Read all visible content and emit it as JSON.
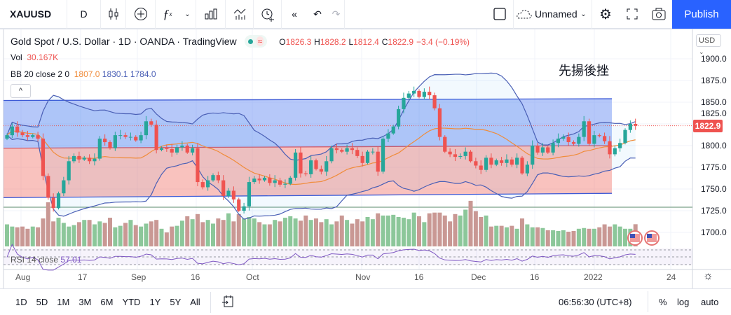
{
  "toolbar": {
    "symbol": "XAUUSD",
    "interval": "D",
    "layout_name": "Unnamed",
    "publish_label": "Publish",
    "icons": [
      "candles-icon",
      "add-indicator-icon",
      "fx-icon",
      "chevron-down-icon",
      "templates-icon",
      "compare-icon",
      "alert-icon",
      "replay-icon",
      "undo-icon",
      "redo-icon",
      "layout-icon",
      "cloud-icon",
      "chevron-down-icon",
      "gear-icon",
      "fullscreen-icon",
      "camera-icon"
    ]
  },
  "legend": {
    "title": "Gold Spot / U.S. Dollar · 1D · OANDA · TradingView",
    "market_status_color": "#26a69a",
    "badge": "≈",
    "o_label": "O",
    "o": "1826.3",
    "h_label": "H",
    "h": "1828.2",
    "l_label": "L",
    "l": "1812.4",
    "c_label": "C",
    "c": "1822.9",
    "change": "−3.4 (−0.19%)",
    "vol_label": "Vol",
    "vol_value": "30.167K",
    "bb_label": "BB 20 close 2 0",
    "bb_basis": "1807.0",
    "bb_upper": "1830.1",
    "bb_lower": "1784.0",
    "collapse": "^"
  },
  "annotation": "先揚後挫",
  "price_axis": {
    "currency": "USD",
    "ticks": [
      "1900.0",
      "1875.0",
      "1850.0",
      "1825.0",
      "1800.0",
      "1775.0",
      "1750.0",
      "1725.0",
      "1700.0"
    ],
    "last_price": "1822.9"
  },
  "rsi": {
    "label": "RSI 14 close",
    "value": "57.01"
  },
  "time_axis": [
    "Aug",
    "17",
    "Sep",
    "16",
    "Oct",
    "Nov",
    "16",
    "Dec",
    "16",
    "2022",
    "24"
  ],
  "bottombar": {
    "ranges": [
      "1D",
      "5D",
      "1M",
      "3M",
      "6M",
      "YTD",
      "1Y",
      "5Y",
      "All"
    ],
    "clock": "06:56:30 (UTC+8)",
    "pct": "%",
    "log": "log",
    "auto": "auto"
  },
  "colors": {
    "up": "#26a69a",
    "down": "#ef5350",
    "bb_basis": "#f08c3a",
    "bb_band": "#4a5fb5",
    "publish": "#2962ff"
  },
  "chart_data": {
    "type": "candlestick",
    "symbol": "XAUUSD",
    "ylim": [
      1690,
      1910
    ],
    "close": [
      1812,
      1822,
      1815,
      1812,
      1810,
      1812,
      1808,
      1765,
      1740,
      1728,
      1745,
      1760,
      1782,
      1788,
      1784,
      1786,
      1782,
      1785,
      1808,
      1804,
      1797,
      1812,
      1812,
      1810,
      1810,
      1806,
      1812,
      1828,
      1824,
      1795,
      1797,
      1796,
      1792,
      1798,
      1800,
      1792,
      1797,
      1758,
      1752,
      1760,
      1766,
      1760,
      1742,
      1748,
      1738,
      1725,
      1730,
      1758,
      1762,
      1760,
      1763,
      1757,
      1760,
      1755,
      1756,
      1763,
      1792,
      1768,
      1767,
      1783,
      1773,
      1770,
      1782,
      1797,
      1795,
      1793,
      1797,
      1795,
      1788,
      1780,
      1793,
      1793,
      1770,
      1808,
      1814,
      1822,
      1842,
      1855,
      1860,
      1863,
      1856,
      1862,
      1858,
      1843,
      1810,
      1793,
      1790,
      1787,
      1788,
      1793,
      1782,
      1777,
      1772,
      1786,
      1778,
      1783,
      1780,
      1784,
      1778,
      1786,
      1768,
      1778,
      1800,
      1792,
      1798,
      1792,
      1803,
      1808,
      1810,
      1804,
      1802,
      1810,
      1828,
      1802,
      1812,
      1811,
      1805,
      1790,
      1797,
      1803,
      1818,
      1825,
      1822.9
    ],
    "volume_k": [
      30,
      27,
      26,
      27,
      24,
      27,
      26,
      38,
      60,
      34,
      39,
      32,
      27,
      29,
      33,
      36,
      36,
      30,
      34,
      32,
      39,
      26,
      28,
      32,
      36,
      29,
      27,
      31,
      34,
      36,
      24,
      19,
      27,
      28,
      35,
      41,
      37,
      44,
      33,
      36,
      31,
      38,
      36,
      45,
      34,
      44,
      38,
      40,
      38,
      33,
      30,
      30,
      36,
      34,
      39,
      41,
      38,
      35,
      42,
      36,
      38,
      33,
      37,
      30,
      34,
      42,
      36,
      31,
      37,
      34,
      40,
      37,
      45,
      42,
      42,
      43,
      40,
      39,
      37,
      46,
      41,
      33,
      45,
      46,
      46,
      42,
      34,
      44,
      42,
      50,
      62,
      48,
      40,
      42,
      27,
      28,
      28,
      26,
      28,
      24,
      38,
      30,
      26,
      26,
      25,
      22,
      22,
      21,
      22,
      20,
      21,
      24,
      25,
      24,
      24,
      26,
      30,
      27,
      30,
      27,
      24,
      24,
      30.167
    ],
    "channel": {
      "upper_start": 1852,
      "upper_end": 1854,
      "mid_start": 1797,
      "mid_end": 1800,
      "lower_start": 1740,
      "lower_end": 1745
    },
    "horizontal_line": 1729
  }
}
